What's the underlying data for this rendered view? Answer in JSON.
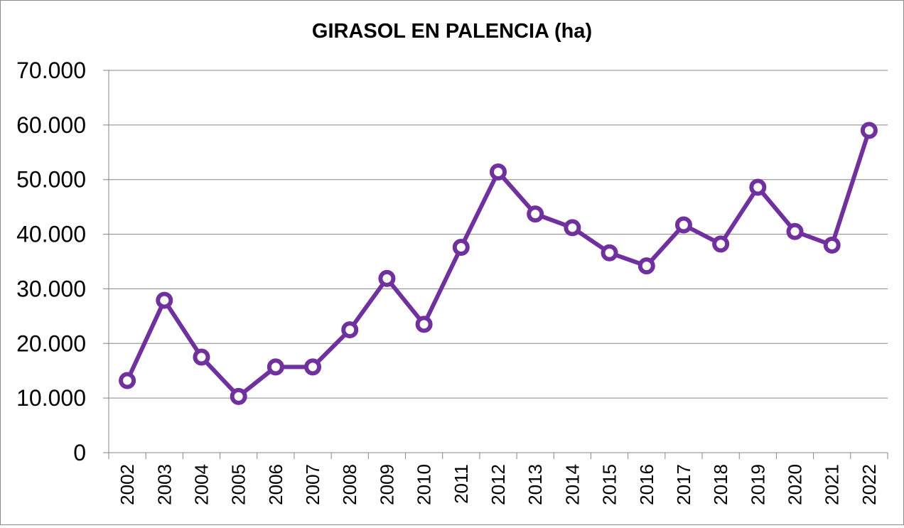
{
  "chart_data": {
    "type": "line",
    "title": "GIRASOL EN PALENCIA (ha)",
    "xlabel": "",
    "ylabel": "",
    "categories": [
      "2002",
      "2003",
      "2004",
      "2005",
      "2006",
      "2007",
      "2008",
      "2009",
      "2010",
      "2011",
      "2012",
      "2013",
      "2014",
      "2015",
      "2016",
      "2017",
      "2018",
      "2019",
      "2020",
      "2021",
      "2022"
    ],
    "series": [
      {
        "values": [
          13200,
          27900,
          17500,
          10300,
          15700,
          15700,
          22500,
          31900,
          23500,
          37600,
          51400,
          43700,
          41200,
          36600,
          34200,
          41700,
          38200,
          48600,
          40500,
          38000,
          59000
        ]
      }
    ],
    "ylim": [
      0,
      70000
    ],
    "yticks": [
      0,
      10000,
      20000,
      30000,
      40000,
      50000,
      60000,
      70000
    ],
    "ytick_labels": [
      "0",
      "10.000",
      "20.000",
      "30.000",
      "40.000",
      "50.000",
      "60.000",
      "70.000"
    ],
    "grid": true,
    "legend": "none",
    "colors": {
      "line": "#7030A0",
      "marker_fill": "#ffffff",
      "grid": "#868686",
      "axis": "#868686"
    }
  }
}
